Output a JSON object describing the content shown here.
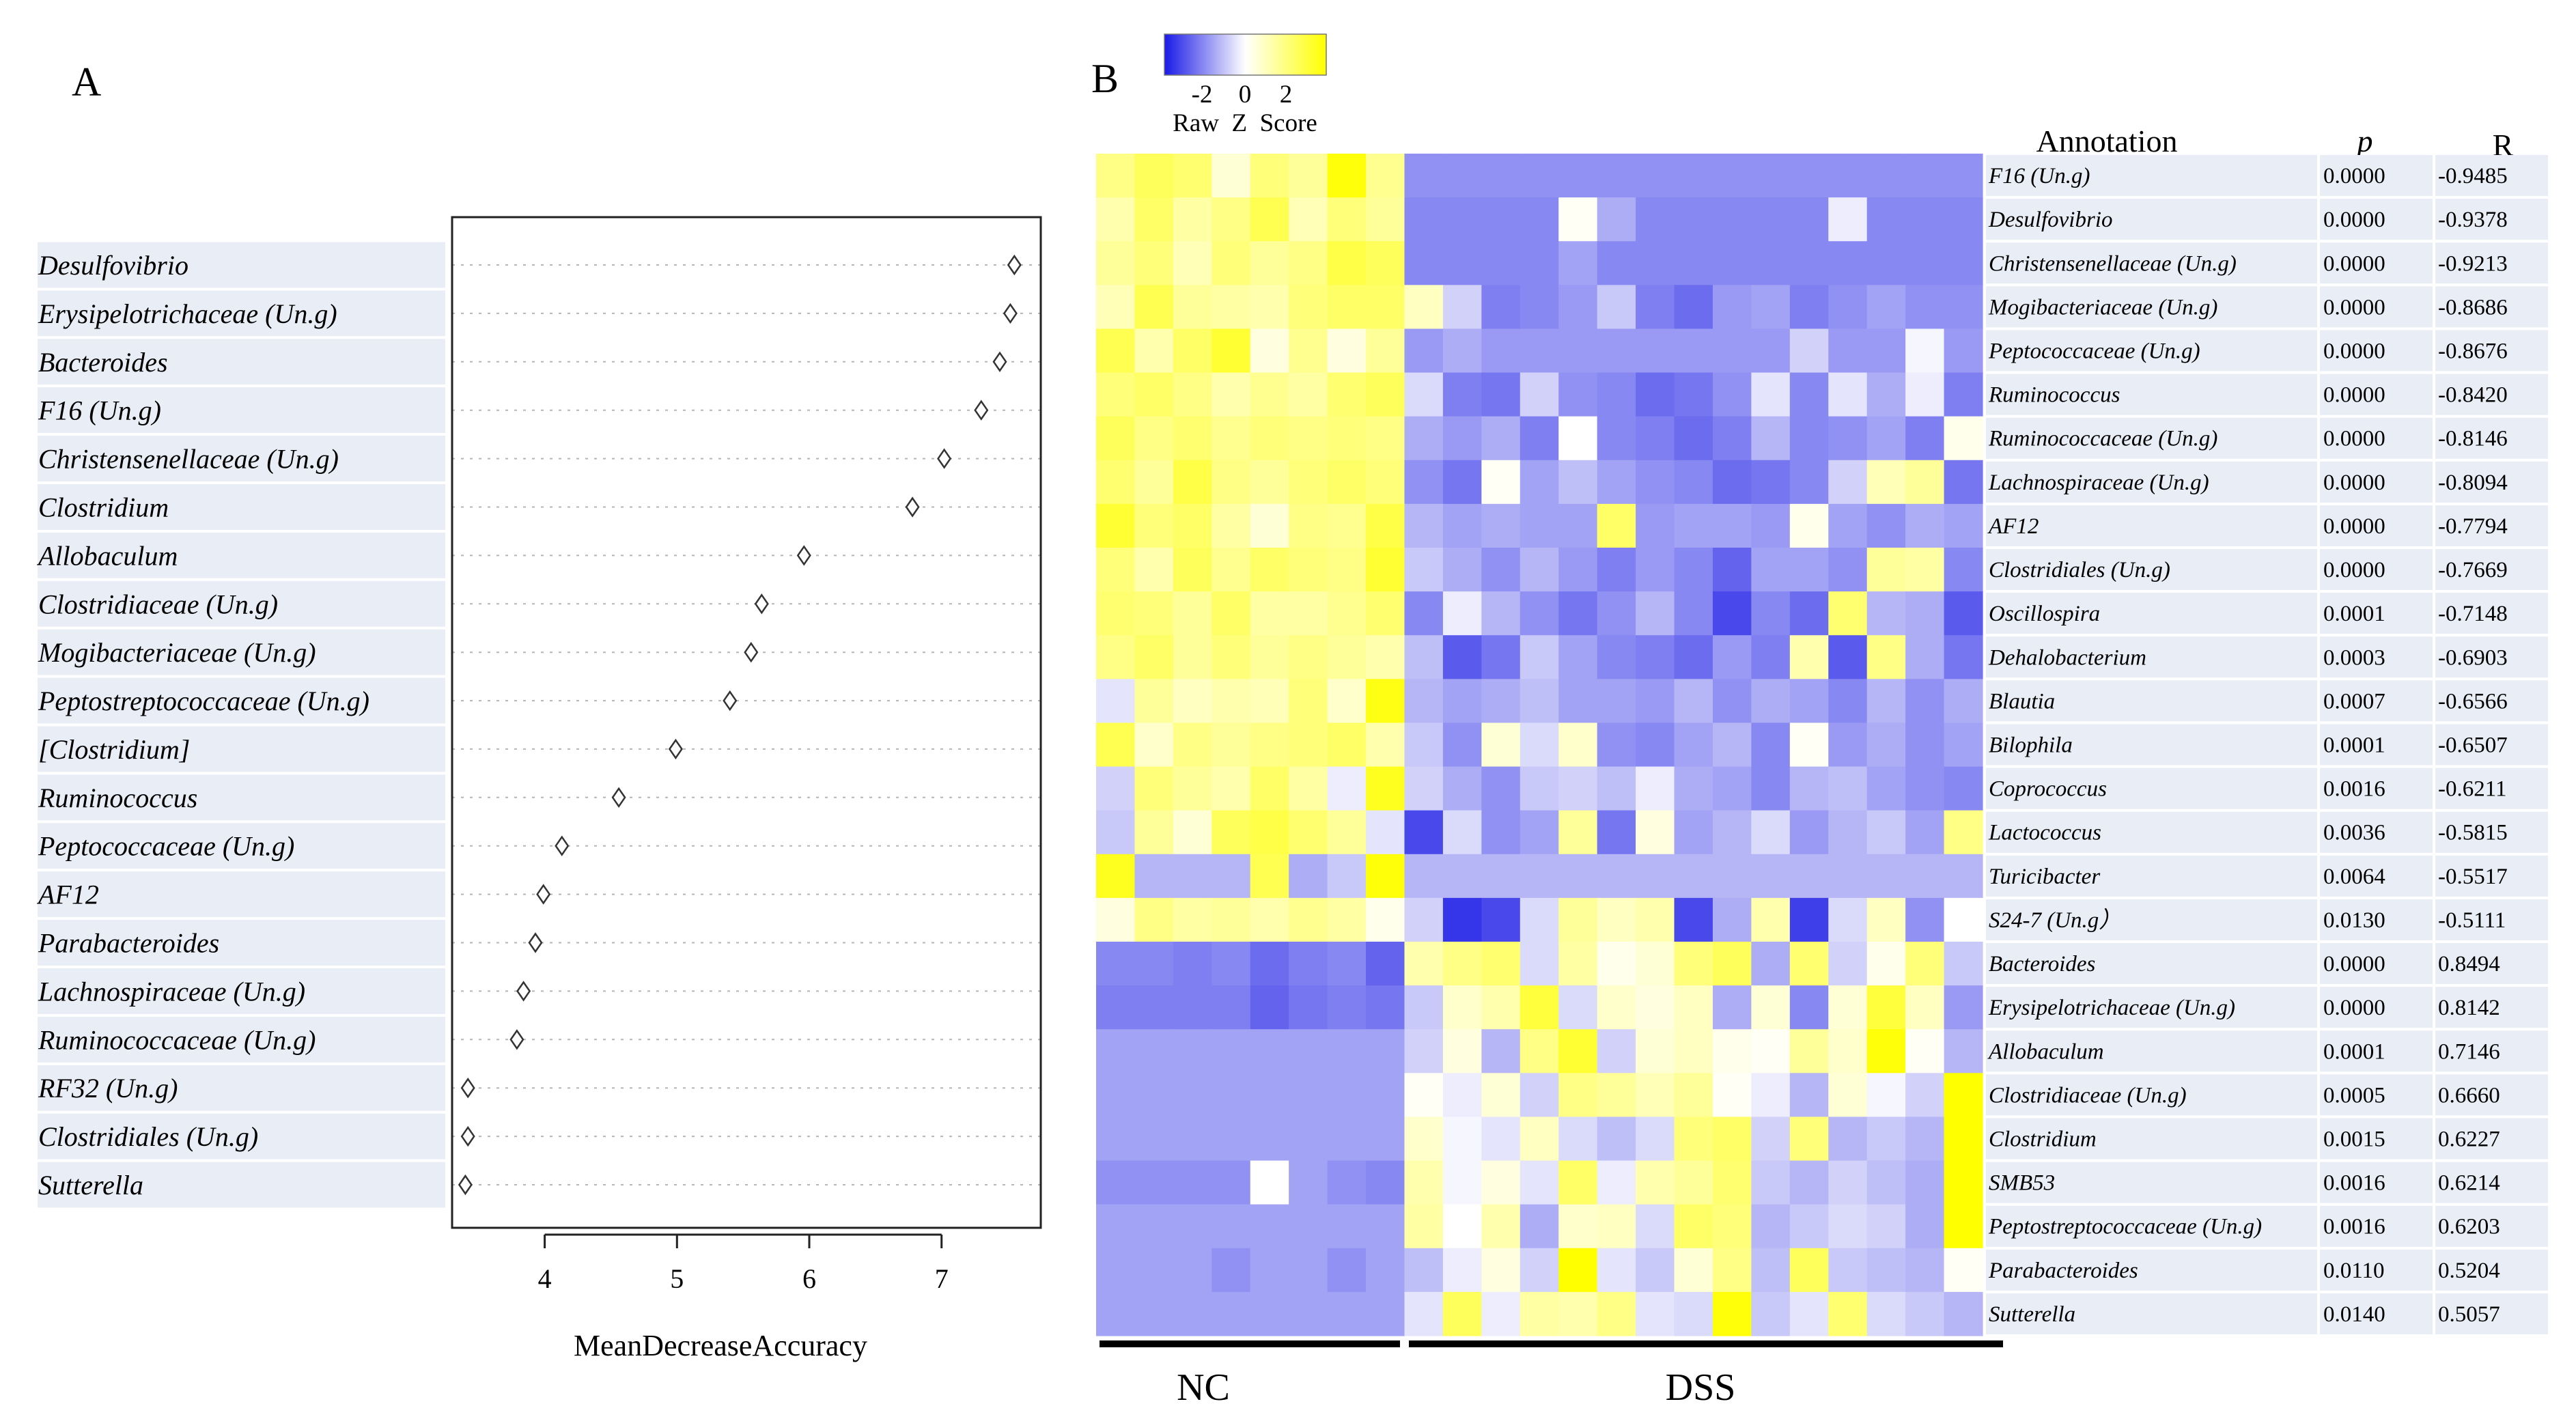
{
  "panel_a": {
    "letter": "A",
    "chart_data": {
      "type": "scatter",
      "xlabel": "MeanDecreaseAccuracy",
      "xlim": [
        3.3,
        7.75
      ],
      "xticks": [
        4,
        5,
        6,
        7
      ],
      "marker": "open-diamond",
      "categories": [
        "Desulfovibrio",
        "Erysipelotrichaceae (Un.g)",
        "Bacteroides",
        "F16 (Un.g)",
        "Christensenellaceae (Un.g)",
        "Clostridium",
        "Allobaculum",
        "Clostridiaceae (Un.g)",
        "Mogibacteriaceae (Un.g)",
        "Peptostreptococcaceae (Un.g)",
        "[Clostridium]",
        "Ruminococcus",
        "Peptococcaceae (Un.g)",
        "AF12",
        "Parabacteroides",
        "Lachnospiraceae (Un.g)",
        "Ruminococcaceae (Un.g)",
        "RF32 (Un.g)",
        "Clostridiales (Un.g)",
        "Sutterella"
      ],
      "values": [
        7.55,
        7.52,
        7.44,
        7.3,
        7.02,
        6.78,
        5.96,
        5.64,
        5.56,
        5.4,
        4.99,
        4.56,
        4.13,
        3.99,
        3.93,
        3.84,
        3.79,
        3.42,
        3.42,
        3.4
      ]
    }
  },
  "panel_b": {
    "letter": "B",
    "legend": {
      "title": "Raw  Z  Score",
      "ticks": [
        "-2",
        "0",
        "2"
      ],
      "colors": [
        "#1a1ae6",
        "#ffffff",
        "#ffff00"
      ]
    },
    "headers": {
      "annotation": "Annotation",
      "p": "p",
      "r": "R"
    },
    "groups": [
      "NC",
      "DSS"
    ],
    "chart_data": {
      "type": "heatmap",
      "row_labels": [
        "F16 (Un.g)",
        "Desulfovibrio",
        "Christensenellaceae (Un.g)",
        "Mogibacteriaceae (Un.g)",
        "Peptococcaceae (Un.g)",
        "Ruminococcus",
        "Ruminococcaceae (Un.g)",
        "Lachnospiraceae (Un.g)",
        "AF12",
        "Clostridiales (Un.g)",
        "Oscillospira",
        "Dehalobacterium",
        "Blautia",
        "Bilophila",
        "Coprococcus",
        "Lactococcus",
        "Turicibacter",
        "S24-7 (Un.g）",
        "Bacteroides",
        "Erysipelotrichaceae (Un.g)",
        "Allobaculum",
        "Clostridiaceae (Un.g)",
        "Clostridium",
        "SMB53",
        "Peptostreptococcaceae (Un.g)",
        "Parabacteroides",
        "Sutterella"
      ],
      "p_values": [
        "0.0000",
        "0.0000",
        "0.0000",
        "0.0000",
        "0.0000",
        "0.0000",
        "0.0000",
        "0.0000",
        "0.0000",
        "0.0000",
        "0.0001",
        "0.0003",
        "0.0007",
        "0.0001",
        "0.0016",
        "0.0036",
        "0.0064",
        "0.0130",
        "0.0000",
        "0.0000",
        "0.0001",
        "0.0005",
        "0.0015",
        "0.0016",
        "0.0016",
        "0.0110",
        "0.0140"
      ],
      "r_values": [
        "-0.9485",
        "-0.9378",
        "-0.9213",
        "-0.8686",
        "-0.8676",
        "-0.8420",
        "-0.8146",
        "-0.8094",
        "-0.7794",
        "-0.7669",
        "-0.7148",
        "-0.6903",
        "-0.6566",
        "-0.6507",
        "-0.6211",
        "-0.5815",
        "-0.5517",
        "-0.5111",
        "0.8494",
        "0.8142",
        "0.7146",
        "0.6660",
        "0.6227",
        "0.6214",
        "0.6203",
        "0.5204",
        "0.5057"
      ],
      "nc_columns": 8,
      "dss_columns": 15,
      "value_range": [
        -2.5,
        2.5
      ],
      "matrix": [
        [
          1.2,
          1.6,
          1.4,
          0.4,
          1.3,
          1.0,
          2.4,
          1.1,
          -1.2,
          -1.2,
          -1.2,
          -1.2,
          -1.2,
          -1.2,
          -1.2,
          -1.2,
          -1.2,
          -1.2,
          -1.2,
          -1.2,
          -1.2,
          -1.2,
          -1.2
        ],
        [
          0.8,
          1.5,
          0.9,
          1.2,
          1.7,
          0.7,
          1.3,
          1.0,
          -1.3,
          -1.3,
          -1.3,
          -1.3,
          0.1,
          -0.9,
          -1.3,
          -1.3,
          -1.3,
          -1.3,
          -1.3,
          -0.2,
          -1.3,
          -1.3,
          -1.3
        ],
        [
          1.0,
          1.3,
          0.7,
          1.3,
          1.0,
          1.2,
          1.8,
          1.6,
          -1.3,
          -1.3,
          -1.3,
          -1.3,
          -1.0,
          -1.3,
          -1.3,
          -1.3,
          -1.3,
          -1.3,
          -1.3,
          -1.3,
          -1.3,
          -1.3,
          -1.3
        ],
        [
          0.7,
          1.7,
          1.0,
          0.9,
          0.8,
          1.3,
          1.5,
          1.5,
          0.6,
          -0.5,
          -1.4,
          -1.3,
          -1.1,
          -0.6,
          -1.4,
          -1.6,
          -1.1,
          -1.0,
          -1.4,
          -1.2,
          -1.0,
          -1.2,
          -1.2
        ],
        [
          1.7,
          0.8,
          1.5,
          2.0,
          0.3,
          1.1,
          0.3,
          1.0,
          -1.1,
          -0.9,
          -1.1,
          -1.1,
          -1.1,
          -1.1,
          -1.1,
          -1.1,
          -1.1,
          -1.1,
          -0.5,
          -1.1,
          -1.1,
          -0.1,
          -1.1
        ],
        [
          1.3,
          1.5,
          1.2,
          0.8,
          1.1,
          0.9,
          1.4,
          1.6,
          -0.4,
          -1.4,
          -1.5,
          -0.5,
          -1.2,
          -1.3,
          -1.6,
          -1.5,
          -1.2,
          -0.3,
          -1.3,
          -0.3,
          -0.9,
          -0.2,
          -1.4
        ],
        [
          1.6,
          1.2,
          1.4,
          1.1,
          1.3,
          1.2,
          1.3,
          1.2,
          -0.9,
          -1.1,
          -0.9,
          -1.4,
          0.0,
          -1.3,
          -1.4,
          -1.6,
          -1.4,
          -0.8,
          -1.3,
          -1.2,
          -1.0,
          -1.4,
          0.2
        ],
        [
          1.4,
          1.0,
          1.8,
          1.2,
          1.0,
          1.3,
          1.5,
          1.3,
          -1.2,
          -1.5,
          0.1,
          -1.0,
          -0.7,
          -1.0,
          -1.2,
          -1.3,
          -1.6,
          -1.5,
          -1.3,
          -0.5,
          0.7,
          1.0,
          -1.5
        ],
        [
          2.0,
          1.3,
          1.5,
          0.9,
          0.4,
          1.2,
          1.1,
          1.8,
          -0.8,
          -1.0,
          -0.9,
          -1.0,
          -1.0,
          1.5,
          -1.1,
          -1.0,
          -1.0,
          -1.1,
          0.2,
          -1.0,
          -1.2,
          -0.9,
          -1.0
        ],
        [
          1.3,
          0.8,
          1.6,
          1.1,
          1.5,
          1.3,
          1.2,
          2.0,
          -0.6,
          -0.9,
          -1.2,
          -0.8,
          -1.1,
          -1.4,
          -1.1,
          -1.3,
          -1.7,
          -1.0,
          -1.0,
          -1.2,
          1.0,
          0.9,
          -1.3
        ],
        [
          1.4,
          1.3,
          1.0,
          1.5,
          0.9,
          0.9,
          1.1,
          1.4,
          -1.3,
          -0.2,
          -0.8,
          -1.2,
          -1.5,
          -1.2,
          -0.8,
          -1.3,
          -2.0,
          -1.3,
          -1.6,
          1.4,
          -0.8,
          -0.9,
          -1.8
        ],
        [
          1.2,
          1.5,
          1.0,
          1.3,
          1.0,
          1.2,
          1.0,
          0.8,
          -0.7,
          -1.8,
          -1.5,
          -0.6,
          -1.0,
          -1.3,
          -1.4,
          -1.6,
          -1.1,
          -1.4,
          0.8,
          -1.8,
          1.2,
          -0.9,
          -1.5
        ],
        [
          -0.3,
          1.0,
          0.6,
          0.8,
          0.7,
          1.3,
          0.5,
          2.3,
          -0.8,
          -1.0,
          -0.9,
          -0.7,
          -1.0,
          -1.0,
          -1.1,
          -0.8,
          -1.2,
          -0.9,
          -1.0,
          -1.3,
          -0.8,
          -1.2,
          -0.9
        ],
        [
          1.7,
          0.5,
          1.2,
          1.0,
          1.2,
          1.3,
          1.5,
          0.8,
          -0.6,
          -1.2,
          0.4,
          -0.4,
          0.5,
          -1.2,
          -1.3,
          -1.0,
          -0.8,
          -1.3,
          0.1,
          -1.1,
          -0.9,
          -1.2,
          -1.0
        ],
        [
          -0.5,
          1.3,
          1.0,
          0.8,
          1.5,
          0.9,
          -0.2,
          2.2,
          -0.5,
          -0.9,
          -1.2,
          -0.6,
          -0.5,
          -0.7,
          -0.2,
          -0.9,
          -1.0,
          -1.3,
          -0.8,
          -0.7,
          -1.0,
          -1.2,
          -1.3
        ],
        [
          -0.6,
          1.0,
          0.4,
          1.6,
          1.8,
          1.4,
          1.0,
          -0.3,
          -2.0,
          -0.4,
          -1.2,
          -1.0,
          1.0,
          -1.5,
          0.3,
          -1.0,
          -0.8,
          -0.4,
          -1.1,
          -0.8,
          -0.6,
          -1.0,
          1.2
        ],
        [
          2.2,
          -0.8,
          -0.8,
          -0.8,
          1.7,
          -0.9,
          -0.6,
          2.4,
          -0.8,
          -0.8,
          -0.8,
          -0.8,
          -0.8,
          -0.8,
          -0.8,
          -0.8,
          -0.8,
          -0.8,
          -0.8,
          -0.8,
          -0.8,
          -0.8,
          -0.8
        ],
        [
          0.3,
          1.2,
          0.9,
          1.0,
          0.8,
          1.1,
          0.9,
          0.2,
          -0.5,
          -2.2,
          -2.0,
          -0.4,
          1.0,
          0.6,
          0.8,
          -2.0,
          -0.9,
          0.8,
          -2.1,
          -0.4,
          0.6,
          -1.2,
          0.0
        ],
        [
          -1.3,
          -1.3,
          -1.4,
          -1.3,
          -1.6,
          -1.4,
          -1.3,
          -1.7,
          0.8,
          1.2,
          1.4,
          -0.4,
          0.9,
          0.2,
          0.4,
          1.3,
          1.6,
          -0.9,
          1.4,
          -0.5,
          0.2,
          1.3,
          -0.6
        ],
        [
          -1.4,
          -1.4,
          -1.4,
          -1.4,
          -1.7,
          -1.5,
          -1.4,
          -1.5,
          -0.6,
          0.5,
          0.8,
          1.9,
          -0.4,
          0.5,
          0.3,
          0.6,
          -0.9,
          0.4,
          -1.3,
          0.4,
          1.9,
          0.6,
          -1.1
        ],
        [
          -1.0,
          -1.0,
          -1.0,
          -1.0,
          -1.0,
          -1.0,
          -1.0,
          -1.0,
          -0.5,
          0.3,
          -0.8,
          1.2,
          2.0,
          -0.5,
          0.4,
          0.6,
          0.2,
          0.1,
          1.0,
          0.5,
          2.4,
          0.1,
          -0.8
        ],
        [
          -1.0,
          -1.0,
          -1.0,
          -1.0,
          -1.0,
          -1.0,
          -1.0,
          -1.0,
          0.1,
          -0.2,
          0.4,
          -0.5,
          1.2,
          1.0,
          0.7,
          1.0,
          0.1,
          -0.2,
          -0.8,
          0.4,
          -0.1,
          -0.5,
          2.8
        ],
        [
          -1.0,
          -1.0,
          -1.0,
          -1.0,
          -1.0,
          -1.0,
          -1.0,
          -1.0,
          0.5,
          -0.1,
          -0.3,
          0.6,
          -0.4,
          -0.7,
          -0.4,
          1.3,
          1.5,
          -0.5,
          1.3,
          -0.8,
          -0.6,
          -0.8,
          2.8
        ],
        [
          -1.2,
          -1.2,
          -1.2,
          -1.2,
          0.0,
          -1.0,
          -1.2,
          -1.3,
          0.8,
          -0.1,
          0.3,
          -0.3,
          1.5,
          -0.2,
          0.8,
          1.0,
          1.4,
          -0.6,
          -0.8,
          -0.5,
          -0.7,
          -0.9,
          2.8
        ],
        [
          -1.0,
          -1.0,
          -1.0,
          -1.0,
          -1.0,
          -1.0,
          -1.0,
          -1.0,
          0.9,
          0.0,
          0.8,
          -0.9,
          0.5,
          0.6,
          -0.4,
          1.5,
          1.3,
          -0.8,
          -0.6,
          -0.4,
          -0.5,
          -0.9,
          2.8
        ],
        [
          -1.0,
          -1.0,
          -1.0,
          -1.2,
          -1.0,
          -1.0,
          -1.2,
          -1.0,
          -0.7,
          -0.2,
          0.3,
          -0.5,
          2.5,
          -0.3,
          -0.6,
          0.4,
          1.2,
          -0.7,
          1.6,
          -0.6,
          -0.7,
          -0.8,
          0.1
        ],
        [
          -1.0,
          -1.0,
          -1.0,
          -1.0,
          -1.0,
          -1.0,
          -1.0,
          -1.0,
          -0.3,
          1.6,
          -0.2,
          0.9,
          0.8,
          1.2,
          -0.3,
          -0.4,
          2.4,
          -0.6,
          -0.3,
          1.4,
          -0.4,
          -0.6,
          -0.8
        ]
      ]
    }
  }
}
